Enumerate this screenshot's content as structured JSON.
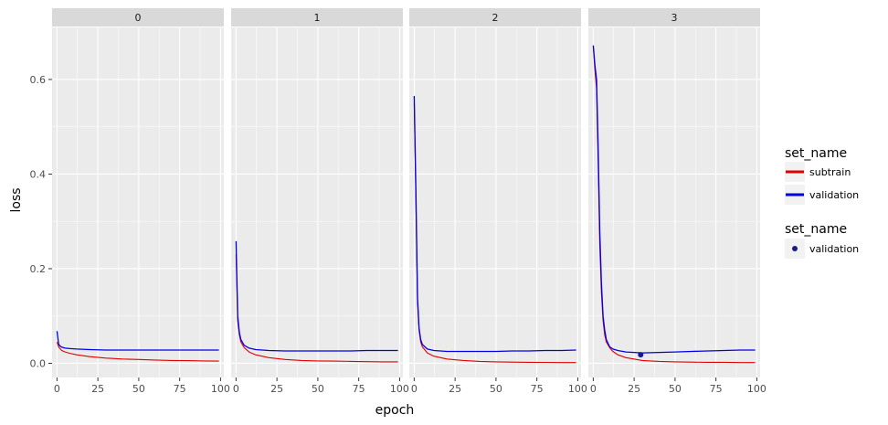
{
  "chart_data": {
    "type": "line",
    "facet_var_values": [
      "0",
      "1",
      "2",
      "3"
    ],
    "xlabel": "epoch",
    "ylabel": "loss",
    "xlim": [
      -3,
      102
    ],
    "ylim": [
      -0.03,
      0.71
    ],
    "x_ticks": [
      0,
      25,
      50,
      75,
      100
    ],
    "y_ticks": [
      0.0,
      0.2,
      0.4,
      0.6
    ],
    "y_tick_labels": [
      "0.0",
      "0.2",
      "0.4",
      "0.6"
    ],
    "grid": true,
    "legend_placement": "right",
    "colors": {
      "subtrain": "#e00000",
      "validation": "#0000e6",
      "point": "#1a1a8a",
      "panel_bg": "#ebebeb",
      "strip_bg": "#d9d9d9"
    },
    "legend_lines": {
      "title": "set_name",
      "entries": [
        {
          "label": "subtrain",
          "color": "#e00000"
        },
        {
          "label": "validation",
          "color": "#0000e6"
        }
      ]
    },
    "legend_points": {
      "title": "set_name",
      "entries": [
        {
          "label": "validation",
          "color": "#1a1a8a"
        }
      ]
    },
    "panels": [
      {
        "facet": "0",
        "series": [
          {
            "name": "subtrain",
            "x": [
              0,
              1,
              2,
              3,
              5,
              8,
              12,
              20,
              30,
              40,
              50,
              60,
              70,
              80,
              90,
              99
            ],
            "y": [
              0.045,
              0.035,
              0.03,
              0.027,
              0.024,
              0.021,
              0.018,
              0.014,
              0.011,
              0.009,
              0.008,
              0.007,
              0.006,
              0.0055,
              0.005,
              0.0045
            ]
          },
          {
            "name": "validation",
            "x": [
              0,
              1,
              2,
              3,
              5,
              8,
              12,
              20,
              30,
              40,
              50,
              60,
              70,
              80,
              90,
              99
            ],
            "y": [
              0.068,
              0.04,
              0.036,
              0.034,
              0.032,
              0.031,
              0.03,
              0.029,
              0.028,
              0.028,
              0.028,
              0.028,
              0.028,
              0.028,
              0.028,
              0.028
            ]
          }
        ],
        "points": []
      },
      {
        "facet": "1",
        "series": [
          {
            "name": "subtrain",
            "x": [
              0,
              1,
              2,
              3,
              5,
              8,
              12,
              20,
              30,
              40,
              50,
              60,
              70,
              80,
              90,
              99
            ],
            "y": [
              0.23,
              0.09,
              0.06,
              0.045,
              0.033,
              0.024,
              0.018,
              0.012,
              0.008,
              0.006,
              0.005,
              0.0045,
              0.004,
              0.0035,
              0.003,
              0.003
            ]
          },
          {
            "name": "validation",
            "x": [
              0,
              1,
              2,
              3,
              5,
              8,
              12,
              20,
              30,
              40,
              50,
              60,
              70,
              80,
              90,
              99
            ],
            "y": [
              0.258,
              0.1,
              0.065,
              0.05,
              0.038,
              0.032,
              0.029,
              0.027,
              0.026,
              0.026,
              0.026,
              0.026,
              0.026,
              0.027,
              0.027,
              0.027
            ]
          }
        ],
        "points": []
      },
      {
        "facet": "2",
        "series": [
          {
            "name": "subtrain",
            "x": [
              0,
              1,
              2,
              3,
              4,
              5,
              8,
              12,
              20,
              30,
              40,
              50,
              60,
              70,
              80,
              90,
              99
            ],
            "y": [
              0.55,
              0.35,
              0.13,
              0.07,
              0.045,
              0.035,
              0.022,
              0.015,
              0.009,
              0.006,
              0.004,
              0.003,
              0.0025,
              0.002,
              0.0018,
              0.0015,
              0.0015
            ]
          },
          {
            "name": "validation",
            "x": [
              0,
              1,
              2,
              3,
              4,
              5,
              8,
              12,
              20,
              30,
              40,
              50,
              60,
              70,
              80,
              90,
              99
            ],
            "y": [
              0.565,
              0.37,
              0.14,
              0.075,
              0.05,
              0.04,
              0.03,
              0.027,
              0.025,
              0.025,
              0.025,
              0.025,
              0.026,
              0.026,
              0.027,
              0.027,
              0.028
            ]
          }
        ],
        "points": []
      },
      {
        "facet": "3",
        "series": [
          {
            "name": "subtrain",
            "x": [
              0,
              1,
              2,
              3,
              4,
              5,
              6,
              7,
              8,
              10,
              12,
              15,
              20,
              30,
              40,
              50,
              60,
              70,
              80,
              90,
              99
            ],
            "y": [
              0.67,
              0.62,
              0.58,
              0.43,
              0.25,
              0.15,
              0.09,
              0.06,
              0.045,
              0.033,
              0.025,
              0.018,
              0.012,
              0.006,
              0.004,
              0.003,
              0.0025,
              0.002,
              0.002,
              0.0015,
              0.0015
            ]
          },
          {
            "name": "validation",
            "x": [
              0,
              1,
              2,
              3,
              4,
              5,
              6,
              7,
              8,
              10,
              12,
              15,
              20,
              30,
              40,
              50,
              60,
              70,
              80,
              90,
              99
            ],
            "y": [
              0.672,
              0.63,
              0.6,
              0.46,
              0.28,
              0.17,
              0.1,
              0.07,
              0.05,
              0.035,
              0.03,
              0.027,
              0.024,
              0.022,
              0.023,
              0.024,
              0.025,
              0.026,
              0.027,
              0.028,
              0.028
            ]
          }
        ],
        "points": [
          {
            "name": "validation",
            "x": 29,
            "y": 0.018
          }
        ]
      }
    ]
  }
}
